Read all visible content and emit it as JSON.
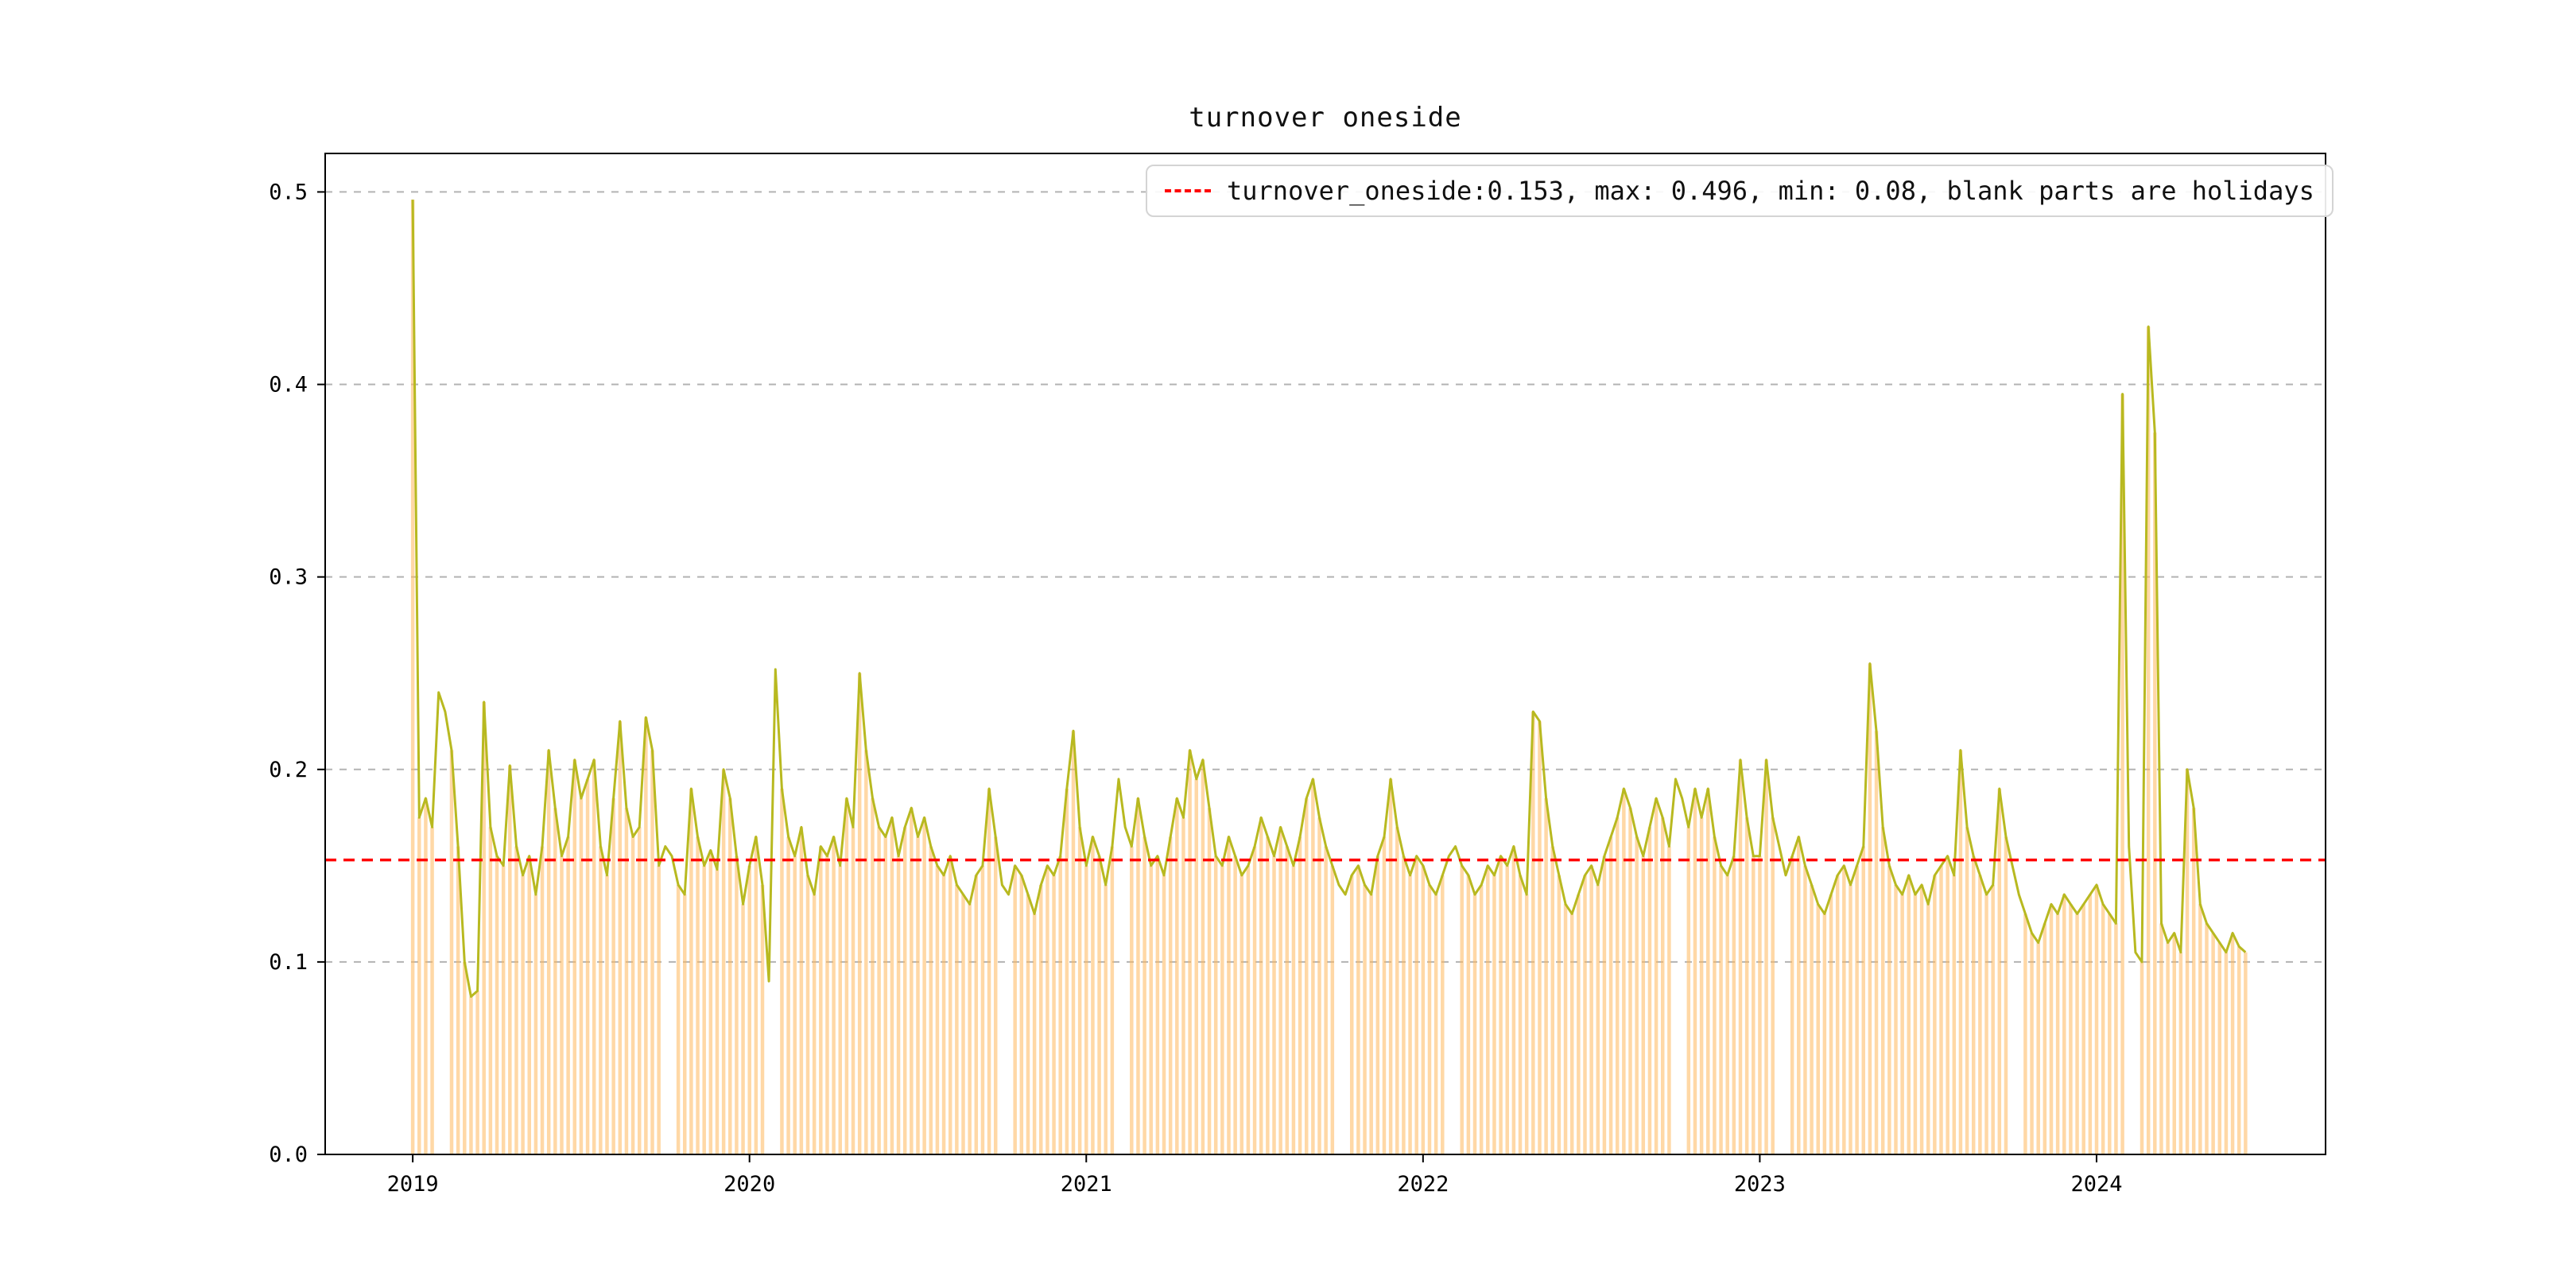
{
  "page": {
    "background": "#ffffff"
  },
  "chart_data": {
    "type": "line",
    "title": "turnover oneside",
    "legend": {
      "label": "turnover_oneside:0.153, max: 0.496, min: 0.08, blank parts are holidays",
      "marker": "red-dashed-line",
      "position": "upper-center-right"
    },
    "stats": {
      "mean": 0.153,
      "max": 0.496,
      "min": 0.08
    },
    "xlabel": "",
    "ylabel": "",
    "xlim": [
      2018.74,
      2024.68
    ],
    "ylim": [
      0,
      0.52
    ],
    "x_ticks": [
      {
        "value": 2019,
        "label": "2019"
      },
      {
        "value": 2020,
        "label": "2020"
      },
      {
        "value": 2021,
        "label": "2021"
      },
      {
        "value": 2022,
        "label": "2022"
      },
      {
        "value": 2023,
        "label": "2023"
      },
      {
        "value": 2024,
        "label": "2024"
      }
    ],
    "y_ticks": [
      {
        "value": 0.0,
        "label": "0.0"
      },
      {
        "value": 0.1,
        "label": "0.1"
      },
      {
        "value": 0.2,
        "label": "0.2"
      },
      {
        "value": 0.3,
        "label": "0.3"
      },
      {
        "value": 0.4,
        "label": "0.4"
      },
      {
        "value": 0.5,
        "label": "0.5"
      }
    ],
    "grid": {
      "horizontal": true,
      "style": "dashed",
      "color": "#b3b3b3"
    },
    "mean_line": {
      "value": 0.153,
      "color": "#ff0000",
      "style": "dashed"
    },
    "series": {
      "name": "turnover_oneside",
      "color": "#b8b920",
      "x_start": 2019.0,
      "x_step": 0.019231,
      "values": [
        0.496,
        0.175,
        0.185,
        0.17,
        0.24,
        0.23,
        0.21,
        0.16,
        0.1,
        0.082,
        0.085,
        0.235,
        0.17,
        0.155,
        0.15,
        0.202,
        0.16,
        0.145,
        0.155,
        0.135,
        0.16,
        0.21,
        0.18,
        0.155,
        0.165,
        0.205,
        0.185,
        0.195,
        0.205,
        0.16,
        0.145,
        0.185,
        0.225,
        0.18,
        0.165,
        0.17,
        0.227,
        0.21,
        0.15,
        0.16,
        0.155,
        0.14,
        0.135,
        0.19,
        0.165,
        0.15,
        0.158,
        0.148,
        0.2,
        0.185,
        0.155,
        0.13,
        0.15,
        0.165,
        0.14,
        0.09,
        0.252,
        0.19,
        0.165,
        0.155,
        0.17,
        0.145,
        0.135,
        0.16,
        0.155,
        0.165,
        0.15,
        0.185,
        0.17,
        0.25,
        0.21,
        0.185,
        0.17,
        0.165,
        0.175,
        0.155,
        0.17,
        0.18,
        0.165,
        0.175,
        0.16,
        0.15,
        0.145,
        0.155,
        0.14,
        0.135,
        0.13,
        0.145,
        0.15,
        0.19,
        0.165,
        0.14,
        0.135,
        0.15,
        0.145,
        0.135,
        0.125,
        0.14,
        0.15,
        0.145,
        0.155,
        0.19,
        0.22,
        0.17,
        0.15,
        0.165,
        0.155,
        0.14,
        0.16,
        0.195,
        0.17,
        0.16,
        0.185,
        0.165,
        0.15,
        0.155,
        0.145,
        0.165,
        0.185,
        0.175,
        0.21,
        0.195,
        0.205,
        0.18,
        0.155,
        0.15,
        0.165,
        0.155,
        0.145,
        0.15,
        0.16,
        0.175,
        0.165,
        0.155,
        0.17,
        0.16,
        0.15,
        0.165,
        0.185,
        0.195,
        0.175,
        0.16,
        0.15,
        0.14,
        0.135,
        0.145,
        0.15,
        0.14,
        0.135,
        0.155,
        0.165,
        0.195,
        0.17,
        0.155,
        0.145,
        0.155,
        0.15,
        0.14,
        0.135,
        0.145,
        0.155,
        0.16,
        0.15,
        0.145,
        0.135,
        0.14,
        0.15,
        0.145,
        0.155,
        0.15,
        0.16,
        0.145,
        0.135,
        0.23,
        0.225,
        0.185,
        0.16,
        0.145,
        0.13,
        0.125,
        0.135,
        0.145,
        0.15,
        0.14,
        0.155,
        0.165,
        0.175,
        0.19,
        0.18,
        0.165,
        0.155,
        0.17,
        0.185,
        0.175,
        0.16,
        0.195,
        0.185,
        0.17,
        0.19,
        0.175,
        0.19,
        0.165,
        0.15,
        0.145,
        0.155,
        0.205,
        0.175,
        0.155,
        0.155,
        0.205,
        0.175,
        0.16,
        0.145,
        0.155,
        0.165,
        0.15,
        0.14,
        0.13,
        0.125,
        0.135,
        0.145,
        0.15,
        0.14,
        0.15,
        0.16,
        0.255,
        0.22,
        0.17,
        0.15,
        0.14,
        0.135,
        0.145,
        0.135,
        0.14,
        0.13,
        0.145,
        0.15,
        0.155,
        0.145,
        0.21,
        0.17,
        0.155,
        0.145,
        0.135,
        0.14,
        0.19,
        0.165,
        0.15,
        0.135,
        0.125,
        0.115,
        0.11,
        0.12,
        0.13,
        0.125,
        0.135,
        0.13,
        0.125,
        0.13,
        0.135,
        0.14,
        0.13,
        0.125,
        0.12,
        0.395,
        0.16,
        0.105,
        0.1,
        0.43,
        0.375,
        0.12,
        0.11,
        0.115,
        0.105,
        0.2,
        0.18,
        0.13,
        0.12,
        0.115,
        0.11,
        0.105,
        0.115,
        0.108,
        0.105
      ]
    },
    "holiday_bars": {
      "color": "#ffb85c",
      "opacity": 0.55,
      "gaps": [
        [
          2019.075,
          2019.115
        ],
        [
          2019.75,
          2019.78
        ],
        [
          2020.055,
          2020.095
        ],
        [
          2020.75,
          2020.78
        ],
        [
          2021.09,
          2021.13
        ],
        [
          2021.75,
          2021.78
        ],
        [
          2022.07,
          2022.11
        ],
        [
          2022.75,
          2022.78
        ],
        [
          2023.05,
          2023.09
        ],
        [
          2023.75,
          2023.78
        ],
        [
          2024.09,
          2024.13
        ]
      ]
    }
  }
}
